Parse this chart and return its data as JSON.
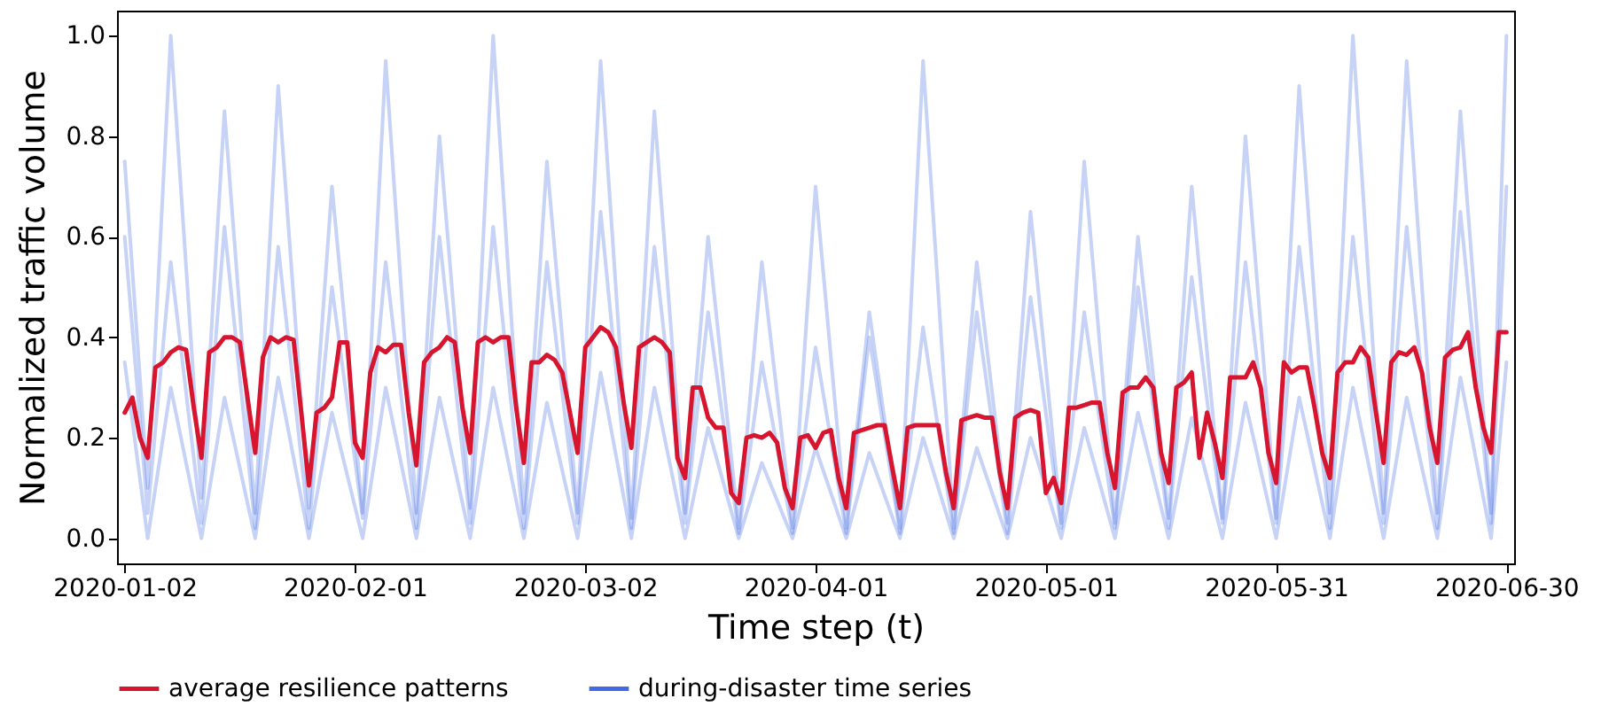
{
  "chart_data": {
    "type": "line",
    "xlabel": "Time step (t)",
    "ylabel": "Normalized traffic volume",
    "xlim": [
      "2020-01-01",
      "2020-07-01"
    ],
    "ylim": [
      -0.05,
      1.05
    ],
    "xticks": [
      "2020-01-02",
      "2020-02-01",
      "2020-03-02",
      "2020-04-01",
      "2020-05-01",
      "2020-05-31",
      "2020-06-30"
    ],
    "yticks": [
      {
        "value": 0,
        "label": "0.0"
      },
      {
        "value": 0.2,
        "label": "0.2"
      },
      {
        "value": 0.4,
        "label": "0.4"
      },
      {
        "value": 0.6,
        "label": "0.6"
      },
      {
        "value": 0.8,
        "label": "0.8"
      },
      {
        "value": 1,
        "label": "1.0"
      }
    ],
    "x": [
      "2020-01-02",
      "2020-01-03",
      "2020-01-04",
      "2020-01-05",
      "2020-01-06",
      "2020-01-07",
      "2020-01-08",
      "2020-01-09",
      "2020-01-10",
      "2020-01-11",
      "2020-01-12",
      "2020-01-13",
      "2020-01-14",
      "2020-01-15",
      "2020-01-16",
      "2020-01-17",
      "2020-01-18",
      "2020-01-19",
      "2020-01-20",
      "2020-01-21",
      "2020-01-22",
      "2020-01-23",
      "2020-01-24",
      "2020-01-25",
      "2020-01-26",
      "2020-01-27",
      "2020-01-28",
      "2020-01-29",
      "2020-01-30",
      "2020-01-31",
      "2020-02-01",
      "2020-02-02",
      "2020-02-03",
      "2020-02-04",
      "2020-02-05",
      "2020-02-06",
      "2020-02-07",
      "2020-02-08",
      "2020-02-09",
      "2020-02-10",
      "2020-02-11",
      "2020-02-12",
      "2020-02-13",
      "2020-02-14",
      "2020-02-15",
      "2020-02-16",
      "2020-02-17",
      "2020-02-18",
      "2020-02-19",
      "2020-02-20",
      "2020-02-21",
      "2020-02-22",
      "2020-02-23",
      "2020-02-24",
      "2020-02-25",
      "2020-02-26",
      "2020-02-27",
      "2020-02-28",
      "2020-02-29",
      "2020-03-01",
      "2020-03-02",
      "2020-03-03",
      "2020-03-04",
      "2020-03-05",
      "2020-03-06",
      "2020-03-07",
      "2020-03-08",
      "2020-03-09",
      "2020-03-10",
      "2020-03-11",
      "2020-03-12",
      "2020-03-13",
      "2020-03-14",
      "2020-03-15",
      "2020-03-16",
      "2020-03-17",
      "2020-03-18",
      "2020-03-19",
      "2020-03-20",
      "2020-03-21",
      "2020-03-22",
      "2020-03-23",
      "2020-03-24",
      "2020-03-25",
      "2020-03-26",
      "2020-03-27",
      "2020-03-28",
      "2020-03-29",
      "2020-03-30",
      "2020-03-31",
      "2020-04-01",
      "2020-04-02",
      "2020-04-03",
      "2020-04-04",
      "2020-04-05",
      "2020-04-06",
      "2020-04-07",
      "2020-04-08",
      "2020-04-09",
      "2020-04-10",
      "2020-04-11",
      "2020-04-12",
      "2020-04-13",
      "2020-04-14",
      "2020-04-15",
      "2020-04-16",
      "2020-04-17",
      "2020-04-18",
      "2020-04-19",
      "2020-04-20",
      "2020-04-21",
      "2020-04-22",
      "2020-04-23",
      "2020-04-24",
      "2020-04-25",
      "2020-04-26",
      "2020-04-27",
      "2020-04-28",
      "2020-04-29",
      "2020-04-30",
      "2020-05-01",
      "2020-05-02",
      "2020-05-03",
      "2020-05-04",
      "2020-05-05",
      "2020-05-06",
      "2020-05-07",
      "2020-05-08",
      "2020-05-09",
      "2020-05-10",
      "2020-05-11",
      "2020-05-12",
      "2020-05-13",
      "2020-05-14",
      "2020-05-15",
      "2020-05-16",
      "2020-05-17",
      "2020-05-18",
      "2020-05-19",
      "2020-05-20",
      "2020-05-21",
      "2020-05-22",
      "2020-05-23",
      "2020-05-24",
      "2020-05-25",
      "2020-05-26",
      "2020-05-27",
      "2020-05-28",
      "2020-05-29",
      "2020-05-30",
      "2020-05-31",
      "2020-06-01",
      "2020-06-02",
      "2020-06-03",
      "2020-06-04",
      "2020-06-05",
      "2020-06-06",
      "2020-06-07",
      "2020-06-08",
      "2020-06-09",
      "2020-06-10",
      "2020-06-11",
      "2020-06-12",
      "2020-06-13",
      "2020-06-14",
      "2020-06-15",
      "2020-06-16",
      "2020-06-17",
      "2020-06-18",
      "2020-06-19",
      "2020-06-20",
      "2020-06-21",
      "2020-06-22",
      "2020-06-23",
      "2020-06-24",
      "2020-06-25",
      "2020-06-26",
      "2020-06-27",
      "2020-06-28",
      "2020-06-29",
      "2020-06-30"
    ],
    "grid": false,
    "legend": "bottom",
    "marker": "none",
    "line_style": "solid",
    "series": [
      {
        "name": "average resilience patterns",
        "color": "#d7152f",
        "values": [
          0.25,
          0.28,
          0.2,
          0.16,
          0.34,
          0.35,
          0.37,
          0.38,
          0.375,
          0.26,
          0.16,
          0.37,
          0.38,
          0.4,
          0.4,
          0.39,
          0.28,
          0.17,
          0.36,
          0.4,
          0.39,
          0.4,
          0.395,
          0.25,
          0.105,
          0.25,
          0.26,
          0.28,
          0.39,
          0.39,
          0.19,
          0.16,
          0.33,
          0.38,
          0.37,
          0.385,
          0.385,
          0.25,
          0.145,
          0.35,
          0.37,
          0.38,
          0.4,
          0.39,
          0.26,
          0.17,
          0.39,
          0.4,
          0.39,
          0.4,
          0.4,
          0.26,
          0.15,
          0.35,
          0.35,
          0.365,
          0.355,
          0.33,
          0.25,
          0.17,
          0.38,
          0.4,
          0.42,
          0.41,
          0.38,
          0.27,
          0.18,
          0.38,
          0.39,
          0.4,
          0.39,
          0.37,
          0.16,
          0.12,
          0.3,
          0.3,
          0.24,
          0.22,
          0.22,
          0.09,
          0.07,
          0.2,
          0.205,
          0.2,
          0.21,
          0.19,
          0.1,
          0.06,
          0.2,
          0.205,
          0.18,
          0.21,
          0.215,
          0.12,
          0.06,
          0.21,
          0.215,
          0.22,
          0.225,
          0.225,
          0.14,
          0.06,
          0.22,
          0.225,
          0.225,
          0.225,
          0.225,
          0.13,
          0.06,
          0.235,
          0.24,
          0.245,
          0.24,
          0.24,
          0.13,
          0.06,
          0.24,
          0.25,
          0.255,
          0.25,
          0.09,
          0.12,
          0.07,
          0.26,
          0.26,
          0.265,
          0.27,
          0.27,
          0.17,
          0.1,
          0.29,
          0.3,
          0.3,
          0.32,
          0.3,
          0.17,
          0.11,
          0.3,
          0.31,
          0.33,
          0.16,
          0.25,
          0.19,
          0.12,
          0.32,
          0.32,
          0.32,
          0.35,
          0.3,
          0.17,
          0.11,
          0.35,
          0.33,
          0.34,
          0.34,
          0.26,
          0.17,
          0.12,
          0.33,
          0.35,
          0.35,
          0.38,
          0.36,
          0.25,
          0.15,
          0.35,
          0.37,
          0.365,
          0.38,
          0.33,
          0.22,
          0.15,
          0.36,
          0.375,
          0.38,
          0.41,
          0.3,
          0.22,
          0.17,
          0.41,
          0.41
        ]
      },
      {
        "name": "during-disaster time series",
        "color": "#4169e1",
        "x": [
          "2020-01-02",
          "2020-01-05",
          "2020-01-08",
          "2020-01-12",
          "2020-01-15",
          "2020-01-19",
          "2020-01-22",
          "2020-01-26",
          "2020-01-29",
          "2020-02-02",
          "2020-02-05",
          "2020-02-09",
          "2020-02-12",
          "2020-02-16",
          "2020-02-19",
          "2020-02-23",
          "2020-02-26",
          "2020-03-01",
          "2020-03-04",
          "2020-03-08",
          "2020-03-11",
          "2020-03-15",
          "2020-03-18",
          "2020-03-22",
          "2020-03-25",
          "2020-03-29",
          "2020-04-01",
          "2020-04-05",
          "2020-04-08",
          "2020-04-12",
          "2020-04-15",
          "2020-04-19",
          "2020-04-22",
          "2020-04-26",
          "2020-04-29",
          "2020-05-03",
          "2020-05-06",
          "2020-05-10",
          "2020-05-13",
          "2020-05-17",
          "2020-05-20",
          "2020-05-24",
          "2020-05-27",
          "2020-05-31",
          "2020-06-03",
          "2020-06-07",
          "2020-06-10",
          "2020-06-14",
          "2020-06-17",
          "2020-06-21",
          "2020-06-24",
          "2020-06-28",
          "2020-06-30"
        ],
        "values": [
          0.6,
          0.05,
          0.55,
          0.03,
          0.62,
          0.02,
          0.58,
          0.02,
          0.5,
          0.04,
          0.55,
          0.02,
          0.6,
          0.03,
          0.62,
          0.02,
          0.55,
          0.03,
          0.65,
          0.02,
          0.58,
          0.03,
          0.45,
          0.01,
          0.35,
          0.01,
          0.38,
          0.01,
          0.4,
          0.01,
          0.42,
          0.01,
          0.45,
          0.01,
          0.48,
          0.02,
          0.45,
          0.02,
          0.5,
          0.02,
          0.52,
          0.03,
          0.55,
          0.03,
          0.58,
          0.02,
          0.6,
          0.03,
          0.62,
          0.02,
          0.65,
          0.03,
          0.7
        ]
      },
      {
        "color": "#4169e1",
        "x": [
          "2020-01-02",
          "2020-01-05",
          "2020-01-08",
          "2020-01-12",
          "2020-01-15",
          "2020-01-19",
          "2020-01-22",
          "2020-01-26",
          "2020-01-29",
          "2020-02-02",
          "2020-02-05",
          "2020-02-09",
          "2020-02-12",
          "2020-02-16",
          "2020-02-19",
          "2020-02-23",
          "2020-02-26",
          "2020-03-01",
          "2020-03-04",
          "2020-03-08",
          "2020-03-11",
          "2020-03-15",
          "2020-03-18",
          "2020-03-22",
          "2020-03-25",
          "2020-03-29",
          "2020-04-01",
          "2020-04-05",
          "2020-04-08",
          "2020-04-12",
          "2020-04-15",
          "2020-04-19",
          "2020-04-22",
          "2020-04-26",
          "2020-04-29",
          "2020-05-03",
          "2020-05-06",
          "2020-05-10",
          "2020-05-13",
          "2020-05-17",
          "2020-05-20",
          "2020-05-24",
          "2020-05-27",
          "2020-05-31",
          "2020-06-03",
          "2020-06-07",
          "2020-06-10",
          "2020-06-14",
          "2020-06-17",
          "2020-06-21",
          "2020-06-24",
          "2020-06-28",
          "2020-06-30"
        ],
        "values": [
          0.35,
          0,
          0.3,
          0,
          0.28,
          0,
          0.32,
          0,
          0.25,
          0,
          0.3,
          0,
          0.28,
          0,
          0.3,
          0,
          0.27,
          0,
          0.33,
          0,
          0.3,
          0,
          0.22,
          0,
          0.15,
          0,
          0.18,
          0,
          0.17,
          0,
          0.2,
          0,
          0.18,
          0,
          0.2,
          0,
          0.22,
          0,
          0.25,
          0,
          0.24,
          0,
          0.27,
          0,
          0.28,
          0,
          0.3,
          0,
          0.28,
          0,
          0.32,
          0,
          0.35
        ]
      },
      {
        "color": "#4169e1",
        "x": [
          "2020-01-02",
          "2020-01-05",
          "2020-01-08",
          "2020-01-12",
          "2020-01-15",
          "2020-01-19",
          "2020-01-22",
          "2020-01-26",
          "2020-01-29",
          "2020-02-02",
          "2020-02-05",
          "2020-02-09",
          "2020-02-12",
          "2020-02-16",
          "2020-02-19",
          "2020-02-23",
          "2020-02-26",
          "2020-03-01",
          "2020-03-04",
          "2020-03-08",
          "2020-03-11",
          "2020-03-15",
          "2020-03-18",
          "2020-03-22",
          "2020-03-25",
          "2020-03-29",
          "2020-04-01",
          "2020-04-05",
          "2020-04-08",
          "2020-04-12",
          "2020-04-15",
          "2020-04-19",
          "2020-04-22",
          "2020-04-26",
          "2020-04-29",
          "2020-05-03",
          "2020-05-06",
          "2020-05-10",
          "2020-05-13",
          "2020-05-17",
          "2020-05-20",
          "2020-05-24",
          "2020-05-27",
          "2020-05-31",
          "2020-06-03",
          "2020-06-07",
          "2020-06-10",
          "2020-06-14",
          "2020-06-17",
          "2020-06-21",
          "2020-06-24",
          "2020-06-28",
          "2020-06-30"
        ],
        "values": [
          0.75,
          0.1,
          1.0,
          0.08,
          0.85,
          0.05,
          0.9,
          0.06,
          0.7,
          0.05,
          0.95,
          0.05,
          0.8,
          0.06,
          1.0,
          0.05,
          0.75,
          0.05,
          0.95,
          0.04,
          0.85,
          0.05,
          0.6,
          0.02,
          0.55,
          0.02,
          0.7,
          0.02,
          0.45,
          0.02,
          0.95,
          0.02,
          0.55,
          0.03,
          0.65,
          0.03,
          0.75,
          0.03,
          0.6,
          0.04,
          0.7,
          0.04,
          0.8,
          0.04,
          0.9,
          0.05,
          1.0,
          0.05,
          0.95,
          0.05,
          0.85,
          0.05,
          1.0
        ]
      }
    ]
  }
}
